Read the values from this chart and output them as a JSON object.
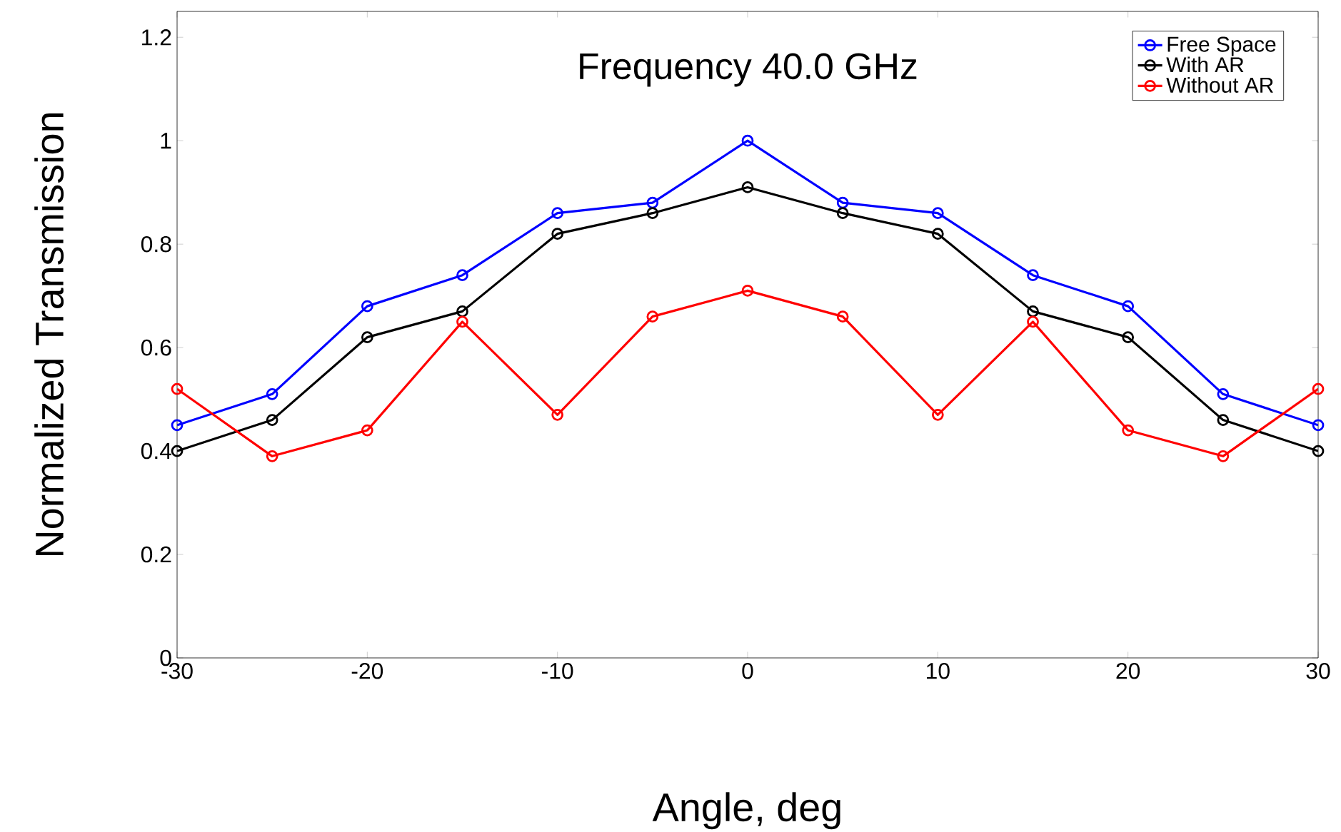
{
  "chart_data": {
    "type": "line",
    "title": "Frequency 40.0 GHz",
    "xlabel": "Angle, deg",
    "ylabel": "Normalized Transmission",
    "x": [
      -30,
      -25,
      -20,
      -15,
      -10,
      -5,
      0,
      5,
      10,
      15,
      20,
      25,
      30
    ],
    "series": [
      {
        "name": "Free Space",
        "color": "#0000ff",
        "values": [
          0.45,
          0.51,
          0.68,
          0.74,
          0.86,
          0.88,
          1.0,
          0.88,
          0.86,
          0.74,
          0.68,
          0.51,
          0.45
        ]
      },
      {
        "name": "With AR",
        "color": "#000000",
        "values": [
          0.4,
          0.46,
          0.62,
          0.67,
          0.82,
          0.86,
          0.91,
          0.86,
          0.82,
          0.67,
          0.62,
          0.46,
          0.4
        ]
      },
      {
        "name": "Without AR",
        "color": "#ff0000",
        "values": [
          0.52,
          0.39,
          0.44,
          0.65,
          0.47,
          0.66,
          0.71,
          0.66,
          0.47,
          0.65,
          0.44,
          0.39,
          0.52
        ]
      }
    ],
    "xlim": [
      -30,
      30
    ],
    "ylim": [
      0,
      1.25
    ],
    "xticks": [
      -30,
      -20,
      -10,
      0,
      10,
      20,
      30
    ],
    "yticks": [
      0,
      0.2,
      0.4,
      0.6,
      0.8,
      1,
      1.2
    ],
    "legend": "top right",
    "marker": "circle",
    "line_style": "solid",
    "grid": false
  }
}
